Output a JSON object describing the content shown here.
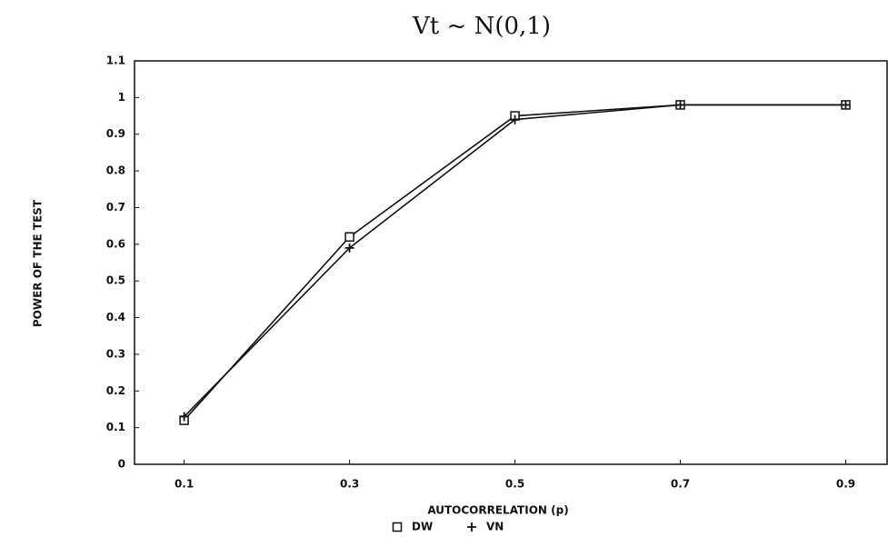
{
  "chart_data": {
    "type": "line",
    "title": "Vt ~ N(0,1)",
    "x_label": "AUTOCORRELATION (p)",
    "y_label": "POWER OF THE TEST",
    "x": [
      0.1,
      0.3,
      0.5,
      0.7,
      0.9
    ],
    "series": [
      {
        "name": "DW",
        "color": "#111111",
        "marker": "square",
        "values": [
          0.12,
          0.62,
          0.95,
          0.98,
          0.98
        ]
      },
      {
        "name": "VN",
        "color": "#111111",
        "marker": "plus",
        "values": [
          0.13,
          0.59,
          0.94,
          0.98,
          0.98
        ]
      }
    ],
    "xlim": [
      0.04,
      0.95
    ],
    "xticks": [
      0.1,
      0.3,
      0.5,
      0.7,
      0.9
    ],
    "ylim": [
      0,
      1.1
    ],
    "yticks": [
      0,
      0.1,
      0.2,
      0.3,
      0.4,
      0.5,
      0.6,
      0.7,
      0.8,
      0.9,
      1,
      1.1
    ],
    "grid": false,
    "legend": "bottom"
  }
}
